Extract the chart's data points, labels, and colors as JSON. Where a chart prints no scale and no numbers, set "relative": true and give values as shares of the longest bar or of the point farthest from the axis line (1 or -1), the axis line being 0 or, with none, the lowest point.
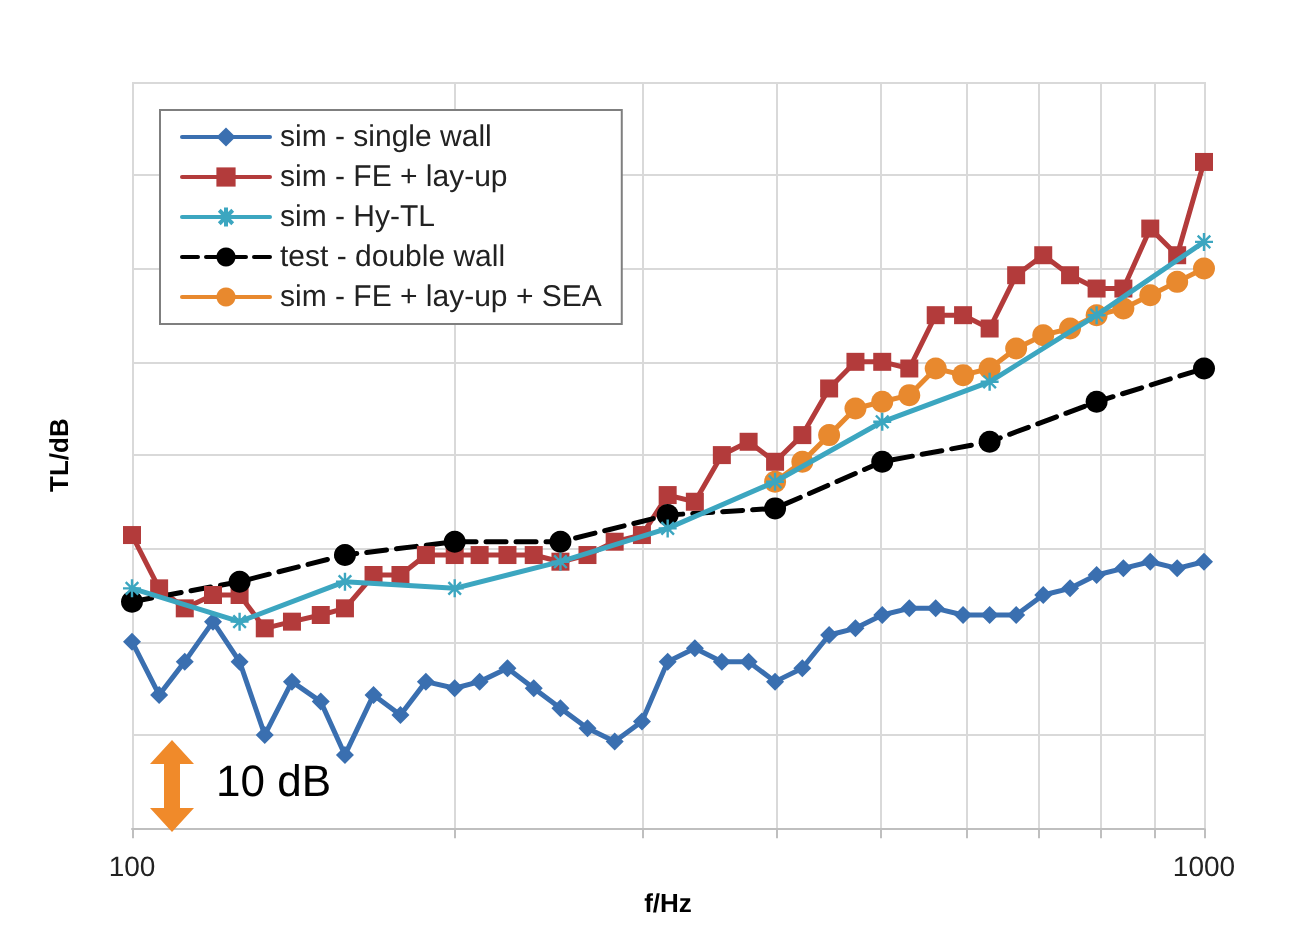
{
  "chart_data": {
    "type": "line",
    "xlabel": "f/Hz",
    "ylabel": "TL/dB",
    "relative": true,
    "log": "x",
    "grid": true,
    "legend": "top left",
    "xlim": [
      100,
      1000
    ],
    "xticks": [
      100,
      {
        "value": 200,
        "label": null
      },
      {
        "value": 300,
        "label": null
      },
      {
        "value": 400,
        "label": null
      },
      {
        "value": 500,
        "label": null
      },
      {
        "value": 600,
        "label": null
      },
      {
        "value": 700,
        "label": null
      },
      {
        "value": 800,
        "label": null
      },
      {
        "value": 900,
        "label": null
      },
      1000
    ],
    "x": [
      100,
      106,
      112,
      119,
      126,
      133,
      141,
      150,
      158,
      168,
      178,
      188,
      200,
      211,
      224,
      237,
      251,
      266,
      282,
      299,
      316,
      335,
      355,
      376,
      398,
      422,
      447,
      473,
      501,
      531,
      562,
      596,
      631,
      668,
      708,
      750,
      794,
      841,
      891,
      944,
      1000
    ],
    "annotations": [
      "10 dB"
    ],
    "series": [
      {
        "name": "sim - single wall",
        "color": "#3a6fb0",
        "marker": "diamond",
        "values": [
          0.28,
          0.2,
          0.25,
          0.31,
          0.25,
          0.14,
          0.22,
          0.19,
          0.11,
          0.2,
          0.17,
          0.22,
          0.21,
          0.22,
          0.24,
          0.21,
          0.18,
          0.15,
          0.13,
          0.16,
          0.25,
          0.27,
          0.25,
          0.25,
          0.22,
          0.24,
          0.29,
          0.3,
          0.32,
          0.33,
          0.33,
          0.32,
          0.32,
          0.32,
          0.35,
          0.36,
          0.38,
          0.39,
          0.4,
          0.39,
          0.4
        ]
      },
      {
        "name": "sim - FE + lay-up",
        "color": "#b33b3b",
        "marker": "square",
        "values": [
          0.44,
          0.36,
          0.33,
          0.35,
          0.35,
          0.3,
          0.31,
          0.32,
          0.33,
          0.38,
          0.38,
          0.41,
          0.41,
          0.41,
          0.41,
          0.41,
          0.4,
          0.41,
          0.43,
          0.44,
          0.5,
          0.49,
          0.56,
          0.58,
          0.55,
          0.59,
          0.66,
          0.7,
          0.7,
          0.69,
          0.77,
          0.77,
          0.75,
          0.83,
          0.86,
          0.83,
          0.81,
          0.81,
          0.9,
          0.86,
          1
        ]
      },
      {
        "name": "sim - Hy-TL",
        "color": "#3ca6c0",
        "marker": "cross",
        "x": [
          100,
          126,
          158,
          200,
          251,
          316,
          398,
          501,
          631,
          794,
          1000
        ],
        "values": [
          0.36,
          0.31,
          0.37,
          0.36,
          0.4,
          0.45,
          0.52,
          0.61,
          0.67,
          0.77,
          0.88
        ]
      },
      {
        "name": "test - double wall",
        "color": "#000000",
        "marker": "circle",
        "line_style": "dashed",
        "x": [
          100,
          126,
          158,
          200,
          251,
          316,
          398,
          501,
          631,
          794,
          1000
        ],
        "values": [
          0.34,
          0.37,
          0.41,
          0.43,
          0.43,
          0.47,
          0.48,
          0.55,
          0.58,
          0.64,
          0.69
        ]
      },
      {
        "name": "sim - FE + lay-up + SEA",
        "color": "#e8892e",
        "marker": "circle",
        "x": [
          398,
          422,
          447,
          473,
          501,
          531,
          562,
          596,
          631,
          668,
          708,
          750,
          794,
          841,
          891,
          944,
          1000
        ],
        "values": [
          0.52,
          0.55,
          0.59,
          0.63,
          0.64,
          0.65,
          0.69,
          0.68,
          0.69,
          0.72,
          0.74,
          0.75,
          0.77,
          0.78,
          0.8,
          0.82,
          0.84
        ]
      }
    ]
  }
}
